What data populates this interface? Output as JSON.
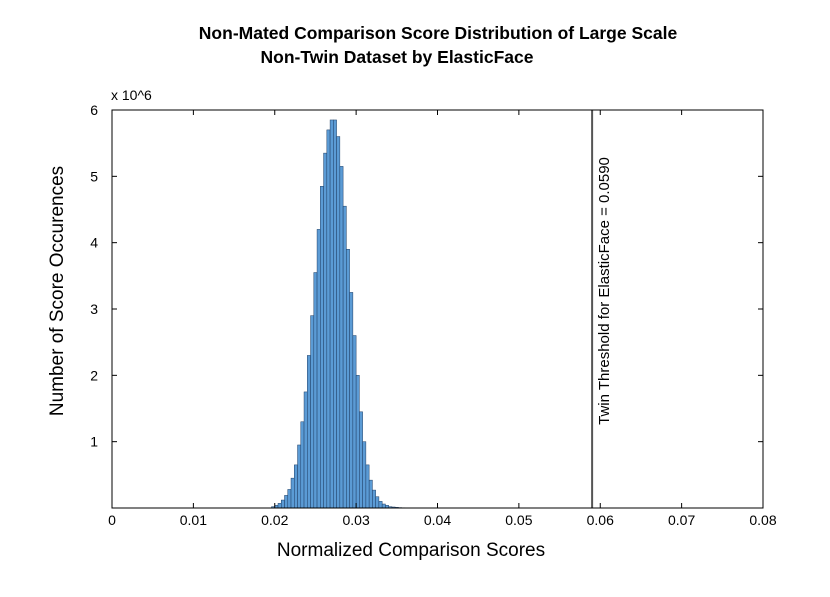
{
  "chart_data": {
    "type": "bar",
    "title_line1": "Non-Mated Comparison Score Distribution of Large Scale",
    "title_line2": "Non-Twin Dataset by ElasticFace",
    "xlabel": "Normalized Comparison Scores",
    "ylabel": "Number of Score Occurences",
    "y_multiplier_label": "x 10^6",
    "xlim": [
      0,
      0.08
    ],
    "ylim": [
      0,
      6
    ],
    "x_ticks": [
      "0",
      "0.01",
      "0.02",
      "0.03",
      "0.04",
      "0.05",
      "0.06",
      "0.07",
      "0.08"
    ],
    "y_ticks": [
      "1",
      "2",
      "3",
      "4",
      "5",
      "6"
    ],
    "grid": false,
    "bar_color": "#5b9bd5",
    "bin_width": 0.0004,
    "bins_x": [
      0.0196,
      0.02,
      0.0204,
      0.0208,
      0.0212,
      0.0216,
      0.022,
      0.0224,
      0.0228,
      0.0232,
      0.0236,
      0.024,
      0.0244,
      0.0248,
      0.0252,
      0.0256,
      0.026,
      0.0264,
      0.0268,
      0.0272,
      0.0276,
      0.028,
      0.0284,
      0.0288,
      0.0292,
      0.0296,
      0.03,
      0.0304,
      0.0308,
      0.0312,
      0.0316,
      0.032,
      0.0324,
      0.0328,
      0.0332,
      0.0336,
      0.034,
      0.0344,
      0.0348,
      0.0352,
      0.0356,
      0.036
    ],
    "values_millions": [
      0.02,
      0.04,
      0.07,
      0.12,
      0.19,
      0.28,
      0.45,
      0.65,
      0.95,
      1.3,
      1.75,
      2.3,
      2.9,
      3.55,
      4.2,
      4.85,
      5.35,
      5.7,
      5.85,
      5.85,
      5.6,
      5.15,
      4.55,
      3.9,
      3.25,
      2.6,
      2.0,
      1.45,
      1.0,
      0.65,
      0.42,
      0.27,
      0.17,
      0.1,
      0.06,
      0.04,
      0.02,
      0.015,
      0.01,
      0.006,
      0.004,
      0.002
    ],
    "threshold": {
      "x": 0.059,
      "label": "Twin Threshold for ElasticFace = 0.0590",
      "color": "#555555"
    }
  }
}
